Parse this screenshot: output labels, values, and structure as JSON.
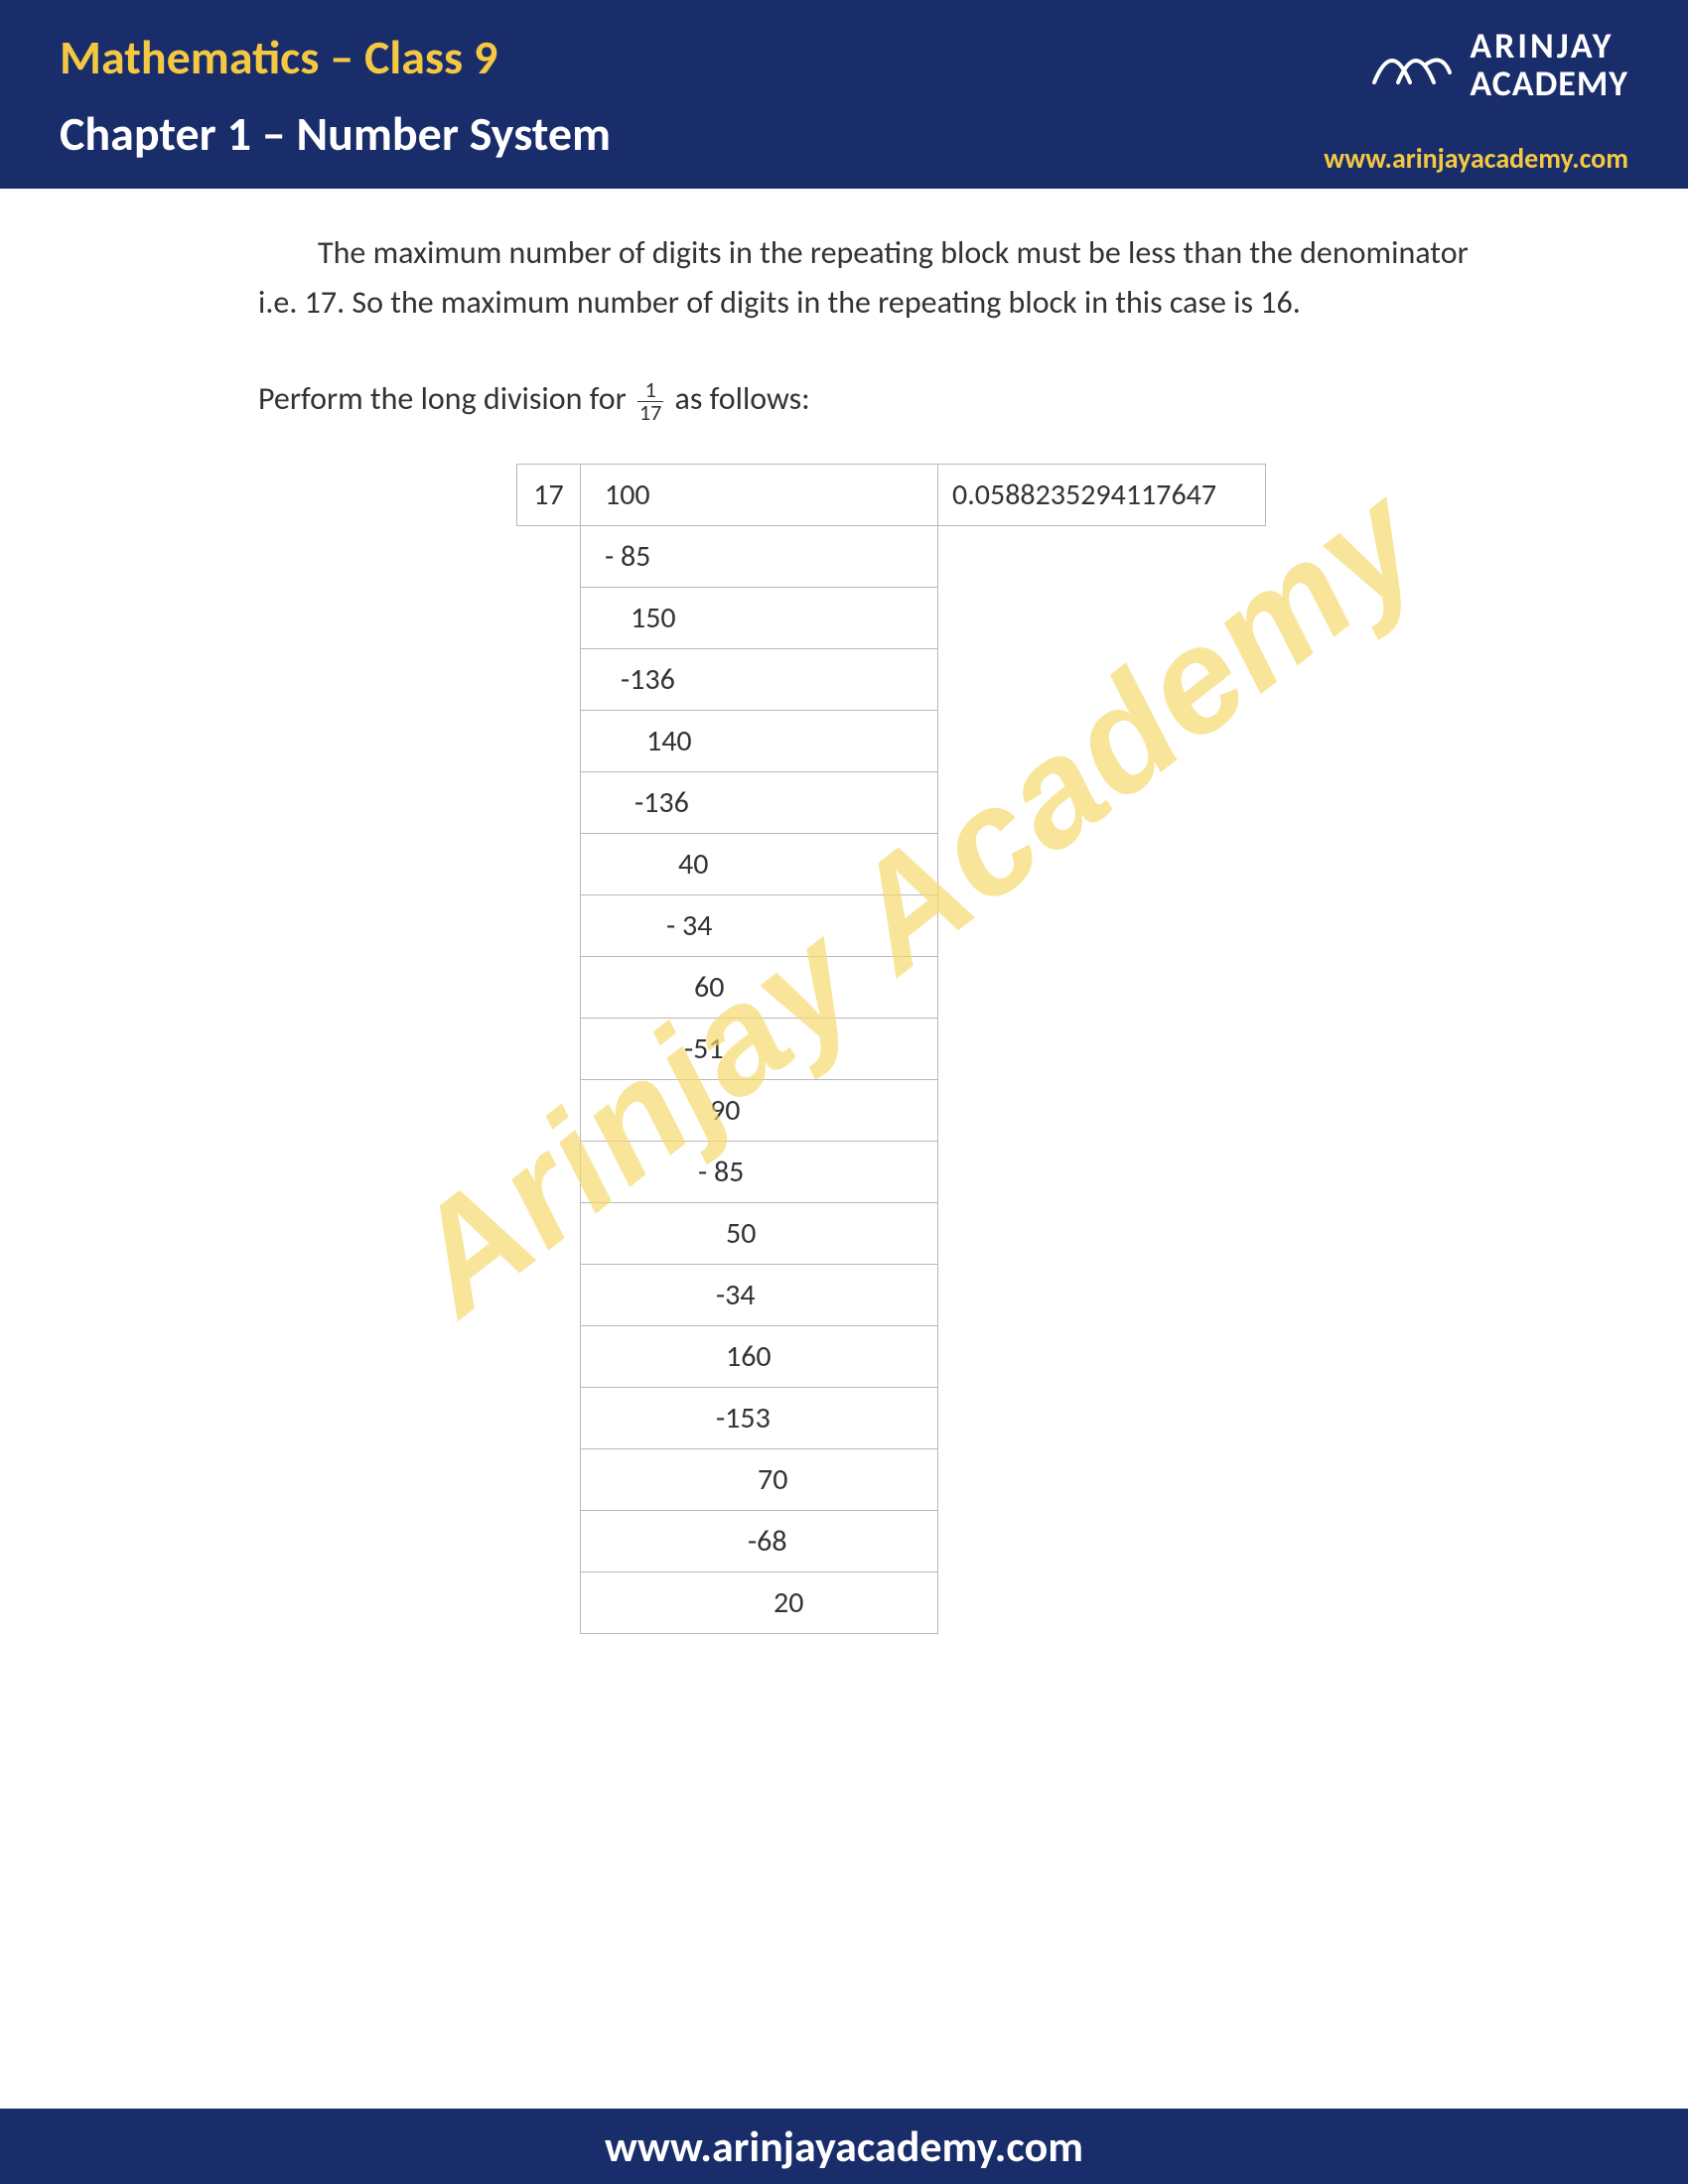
{
  "header": {
    "title": "Mathematics – Class 9",
    "subtitle": "Chapter 1 – Number System",
    "logo_line1": "ARINJAY",
    "logo_line2": "ACADEMY",
    "logo_url": "www.arinjayacademy.com",
    "bg_color": "#1a2d6b",
    "title_color": "#f5c842",
    "subtitle_color": "#ffffff"
  },
  "body": {
    "para1": "The maximum number of digits in the repeating block must be less than the denominator i.e. 17. So the maximum number of digits in the repeating block in this case is 16.",
    "para2_pre": "Perform the long division for ",
    "frac_num": "1",
    "frac_den": "17",
    "para2_post": "  as follows:",
    "text_color": "#333333",
    "fontsize": 32
  },
  "division": {
    "divisor": "17",
    "quotient": "0.0588235294117647",
    "border_color": "#b8b8b8",
    "rows": [
      {
        "text": "100",
        "pad": 24
      },
      {
        "text": "-  85",
        "pad": 24
      },
      {
        "text": "150",
        "pad": 50
      },
      {
        "text": "-136",
        "pad": 40
      },
      {
        "text": "140",
        "pad": 66
      },
      {
        "text": "-136",
        "pad": 54
      },
      {
        "text": "40",
        "pad": 98
      },
      {
        "text": "- 34",
        "pad": 86
      },
      {
        "text": "60",
        "pad": 114
      },
      {
        "text": "-51",
        "pad": 104
      },
      {
        "text": "90",
        "pad": 130
      },
      {
        "text": "- 85",
        "pad": 118
      },
      {
        "text": "50",
        "pad": 146
      },
      {
        "text": "-34",
        "pad": 136
      },
      {
        "text": "160",
        "pad": 146
      },
      {
        "text": "-153",
        "pad": 136
      },
      {
        "text": "70",
        "pad": 178
      },
      {
        "text": "-68",
        "pad": 168
      },
      {
        "text": "20",
        "pad": 194
      }
    ]
  },
  "watermark": {
    "text": "Arinjay Academy",
    "color": "#f5d96b"
  },
  "footer": {
    "text": "www.arinjayacademy.com",
    "bg_color": "#1a2d6b",
    "text_color": "#ffffff"
  }
}
